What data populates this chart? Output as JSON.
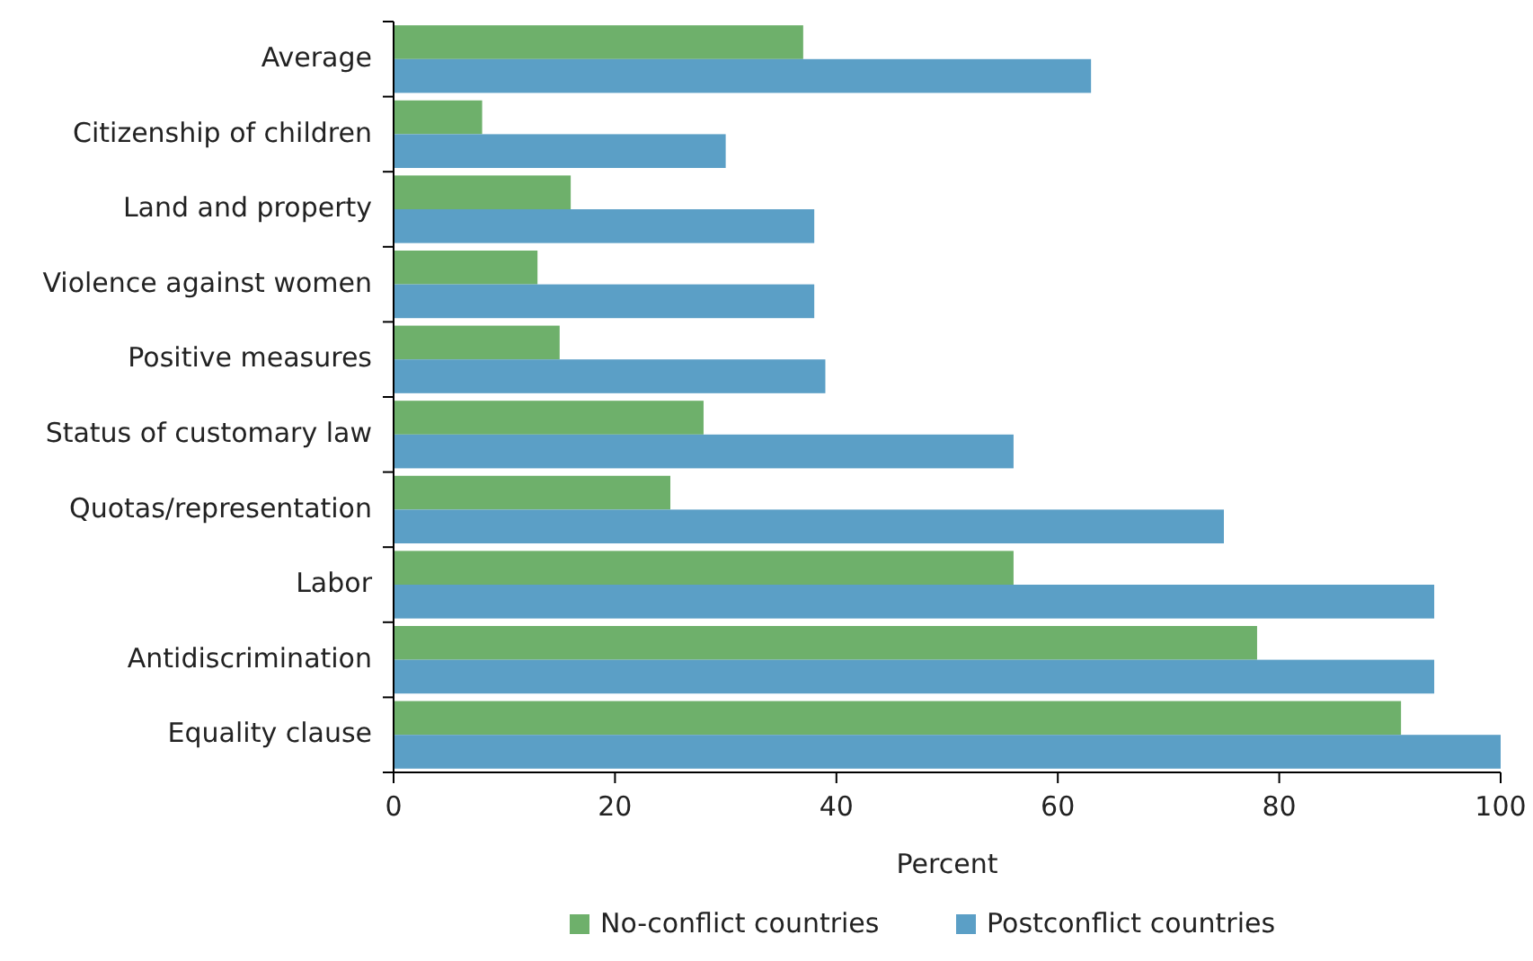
{
  "chart_data": {
    "type": "bar",
    "orientation": "horizontal",
    "xlabel": "Percent",
    "categories": [
      "Average",
      "Citizenship of children",
      "Land and property",
      "Violence against women",
      "Positive measures",
      "Status of customary law",
      "Quotas/representation",
      "Labor",
      "Antidiscrimination",
      "Equality clause"
    ],
    "series": [
      {
        "name": "No-conflict countries",
        "color": "#6eb06b",
        "values": [
          37,
          8,
          16,
          13,
          15,
          28,
          25,
          56,
          78,
          91
        ]
      },
      {
        "name": "Postconflict countries",
        "color": "#5b9fc6",
        "values": [
          63,
          30,
          38,
          38,
          39,
          56,
          75,
          94,
          94,
          100
        ]
      }
    ],
    "xlim": [
      0,
      100
    ],
    "xticks": [
      0,
      20,
      40,
      60,
      80,
      100
    ],
    "grid": false,
    "legend": "bottom"
  }
}
